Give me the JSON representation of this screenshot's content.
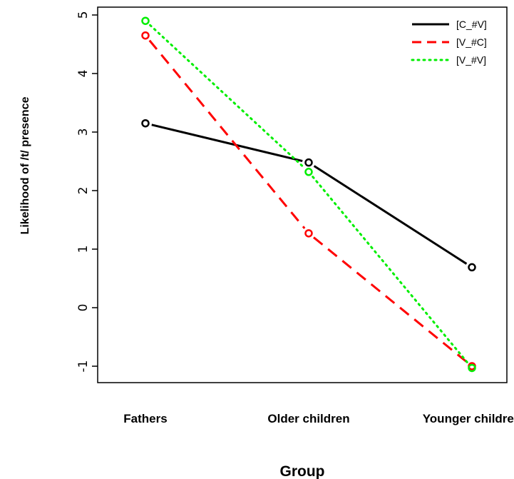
{
  "chart_data": {
    "type": "line",
    "title": "",
    "xlabel": "Group",
    "ylabel": "Likelihood of /t/ presence",
    "categories": [
      "Fathers",
      "Older children",
      "Younger children"
    ],
    "yticks": [
      5,
      4,
      3,
      2,
      1,
      0,
      -1
    ],
    "ylim": [
      -1.3,
      5.05
    ],
    "grid": false,
    "legend_position": "top-right",
    "series": [
      {
        "name": "[C_#V]",
        "values": [
          3.15,
          2.48,
          0.69
        ],
        "color": "#000000",
        "style": "solid"
      },
      {
        "name": "[V_#C]",
        "values": [
          4.65,
          1.27,
          -1.0
        ],
        "color": "#ff0000",
        "style": "dashed"
      },
      {
        "name": "[V_#V]",
        "values": [
          4.9,
          2.32,
          -1.03
        ],
        "color": "#00ee00",
        "style": "dotted"
      }
    ]
  }
}
